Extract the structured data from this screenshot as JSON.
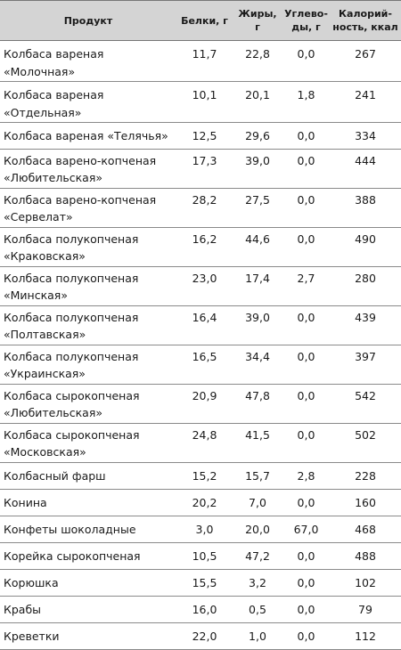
{
  "headers": {
    "product": "Продукт",
    "protein": "Белки, г",
    "fat": "Жиры, г",
    "carbs": "Углево-\nды, г",
    "calories": "Калорий-\nность, ккал"
  },
  "rows": [
    {
      "name": "Колбаса вареная «Молочная»",
      "protein": "11,7",
      "fat": "22,8",
      "carbs": "0,0",
      "calories": "267"
    },
    {
      "name": "Колбаса вареная «Отдельная»",
      "protein": "10,1",
      "fat": "20,1",
      "carbs": "1,8",
      "calories": "241"
    },
    {
      "name": "Колбаса вареная «Телячья»",
      "protein": "12,5",
      "fat": "29,6",
      "carbs": "0,0",
      "calories": "334"
    },
    {
      "name": "Колбаса варено-копченая «Любительская»",
      "protein": "17,3",
      "fat": "39,0",
      "carbs": "0,0",
      "calories": "444"
    },
    {
      "name": "Колбаса варено-копченая «Сервелат»",
      "protein": "28,2",
      "fat": "27,5",
      "carbs": "0,0",
      "calories": "388"
    },
    {
      "name": "Колбаса полукопченая «Краковская»",
      "protein": "16,2",
      "fat": "44,6",
      "carbs": "0,0",
      "calories": "490"
    },
    {
      "name": "Колбаса полукопченая «Минская»",
      "protein": "23,0",
      "fat": "17,4",
      "carbs": "2,7",
      "calories": "280"
    },
    {
      "name": "Колбаса полукопченая «Полтавская»",
      "protein": "16,4",
      "fat": "39,0",
      "carbs": "0,0",
      "calories": "439"
    },
    {
      "name": "Колбаса полукопченая «Украинская»",
      "protein": "16,5",
      "fat": "34,4",
      "carbs": "0,0",
      "calories": "397"
    },
    {
      "name": "Колбаса сырокопченая «Любительская»",
      "protein": "20,9",
      "fat": "47,8",
      "carbs": "0,0",
      "calories": "542"
    },
    {
      "name": "Колбаса сырокопченая «Московская»",
      "protein": "24,8",
      "fat": "41,5",
      "carbs": "0,0",
      "calories": "502"
    },
    {
      "name": "Колбасный фарш",
      "protein": "15,2",
      "fat": "15,7",
      "carbs": "2,8",
      "calories": "228"
    },
    {
      "name": "Конина",
      "protein": "20,2",
      "fat": "7,0",
      "carbs": "0,0",
      "calories": "160"
    },
    {
      "name": "Конфеты шоколадные",
      "protein": "3,0",
      "fat": "20,0",
      "carbs": "67,0",
      "calories": "468"
    },
    {
      "name": "Корейка сырокопченая",
      "protein": "10,5",
      "fat": "47,2",
      "carbs": "0,0",
      "calories": "488"
    },
    {
      "name": "Корюшка",
      "protein": "15,5",
      "fat": "3,2",
      "carbs": "0,0",
      "calories": "102"
    },
    {
      "name": "Крабы",
      "protein": "16,0",
      "fat": "0,5",
      "carbs": "0,0",
      "calories": "79"
    },
    {
      "name": "Креветки",
      "protein": "22,0",
      "fat": "1,0",
      "carbs": "0,0",
      "calories": "112"
    }
  ]
}
